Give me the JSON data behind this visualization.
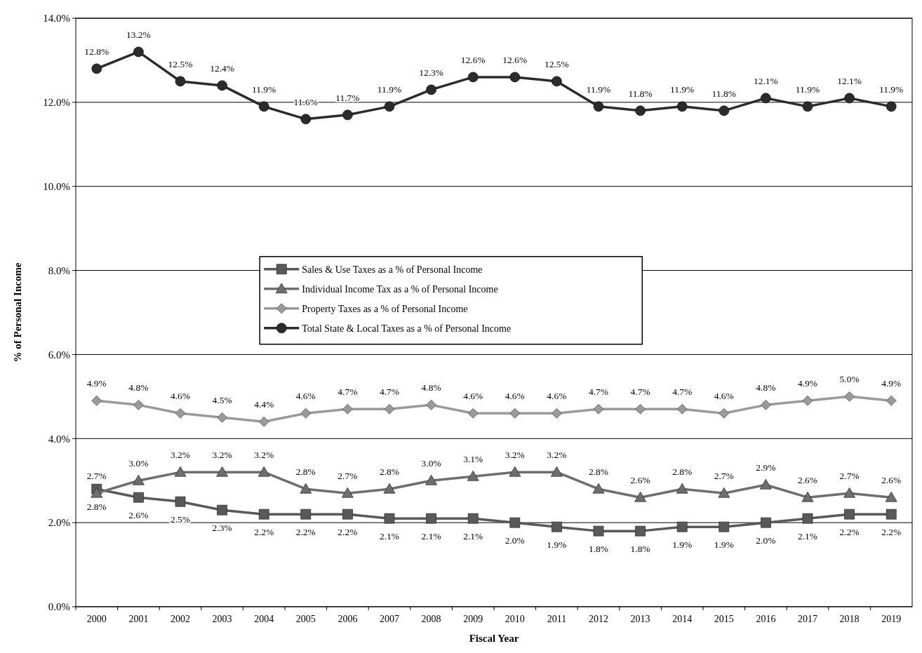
{
  "chart_data": {
    "type": "line",
    "xlabel": "Fiscal Year",
    "ylabel": "% of Personal Income",
    "categories": [
      "2000",
      "2001",
      "2002",
      "2003",
      "2004",
      "2005",
      "2006",
      "2007",
      "2008",
      "2009",
      "2010",
      "2011",
      "2012",
      "2013",
      "2014",
      "2015",
      "2016",
      "2017",
      "2018",
      "2019"
    ],
    "series": [
      {
        "name": "Sales & Use Taxes as a % of Personal Income",
        "color": "#595959",
        "marker": "square",
        "values": [
          2.8,
          2.6,
          2.5,
          2.3,
          2.2,
          2.2,
          2.2,
          2.1,
          2.1,
          2.1,
          2.0,
          1.9,
          1.8,
          1.8,
          1.9,
          1.9,
          2.0,
          2.1,
          2.2,
          2.2
        ],
        "value_labels": [
          "2.8%",
          "2.6%",
          "2.5%",
          "2.3%",
          "2.2%",
          "2.2%",
          "2.2%",
          "2.1%",
          "2.1%",
          "2.1%",
          "2.0%",
          "1.9%",
          "1.8%",
          "1.8%",
          "1.9%",
          "1.9%",
          "2.0%",
          "2.1%",
          "2.2%",
          "2.2%"
        ]
      },
      {
        "name": "Individual Income Tax as a % of Personal Income",
        "color": "#6e6e6e",
        "marker": "triangle",
        "values": [
          2.7,
          3.0,
          3.2,
          3.2,
          3.2,
          2.8,
          2.7,
          2.8,
          3.0,
          3.1,
          3.2,
          3.2,
          2.8,
          2.6,
          2.8,
          2.7,
          2.9,
          2.6,
          2.7,
          2.6
        ],
        "value_labels": [
          "2.7%",
          "3.0%",
          "3.2%",
          "3.2%",
          "3.2%",
          "2.8%",
          "2.7%",
          "2.8%",
          "3.0%",
          "3.1%",
          "3.2%",
          "3.2%",
          "2.8%",
          "2.6%",
          "2.8%",
          "2.7%",
          "2.9%",
          "2.6%",
          "2.7%",
          "2.6%"
        ]
      },
      {
        "name": "Property Taxes as a % of Personal Income",
        "color": "#9a9a9a",
        "marker": "diamond",
        "values": [
          4.9,
          4.8,
          4.6,
          4.5,
          4.4,
          4.6,
          4.7,
          4.7,
          4.8,
          4.6,
          4.6,
          4.6,
          4.7,
          4.7,
          4.7,
          4.6,
          4.8,
          4.9,
          5.0,
          4.9
        ],
        "value_labels": [
          "4.9%",
          "4.8%",
          "4.6%",
          "4.5%",
          "4.4%",
          "4.6%",
          "4.7%",
          "4.7%",
          "4.8%",
          "4.6%",
          "4.6%",
          "4.6%",
          "4.7%",
          "4.7%",
          "4.7%",
          "4.6%",
          "4.8%",
          "4.9%",
          "5.0%",
          "4.9%"
        ]
      },
      {
        "name": "Total State & Local Taxes as a % of Personal Income",
        "color": "#2b2b2b",
        "marker": "circle",
        "values": [
          12.8,
          13.2,
          12.5,
          12.4,
          11.9,
          11.6,
          11.7,
          11.9,
          12.3,
          12.6,
          12.6,
          12.5,
          11.9,
          11.8,
          11.9,
          11.8,
          12.1,
          11.9,
          12.1,
          11.9
        ],
        "value_labels": [
          "12.8%",
          "13.2%",
          "12.5%",
          "12.4%",
          "11.9%",
          "11.6%",
          "11.7%",
          "11.9%",
          "12.3%",
          "12.6%",
          "12.6%",
          "12.5%",
          "11.9%",
          "11.8%",
          "11.9%",
          "11.8%",
          "12.1%",
          "11.9%",
          "12.1%",
          "11.9%"
        ]
      }
    ],
    "ylim": [
      0,
      14
    ],
    "yticks": [
      {
        "value": 0,
        "label": "0.0%"
      },
      {
        "value": 2,
        "label": "2.0%"
      },
      {
        "value": 4,
        "label": "4.0%"
      },
      {
        "value": 6,
        "label": "6.0%"
      },
      {
        "value": 8,
        "label": "8.0%"
      },
      {
        "value": 10,
        "label": "10.0%"
      },
      {
        "value": 12,
        "label": "12.0%"
      },
      {
        "value": 14,
        "label": "14.0%"
      }
    ],
    "grid": "y",
    "legend": "center"
  }
}
